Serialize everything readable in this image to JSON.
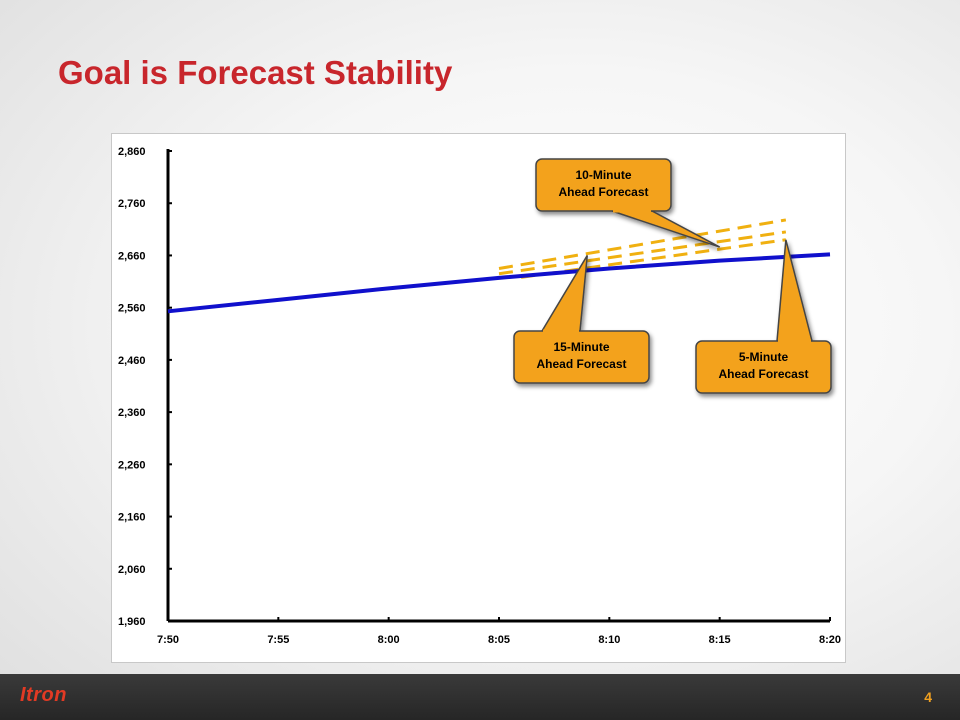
{
  "slide": {
    "title": "Goal is Forecast Stability",
    "page_number": "4",
    "logo_text": "Itron"
  },
  "colors": {
    "title": "#c8262c",
    "actual_line": "#1010cc",
    "forecast_dash": "#f0b010",
    "callout_fill": "#f3a21c",
    "footer": "#2e2e2e"
  },
  "chart_data": {
    "type": "line",
    "title": "",
    "xlabel": "",
    "ylabel": "",
    "x_ticks": [
      "7:50",
      "7:55",
      "8:00",
      "8:05",
      "8:10",
      "8:15",
      "8:20"
    ],
    "y_ticks": [
      "2,860",
      "2,760",
      "2,660",
      "2,560",
      "2,460",
      "2,360",
      "2,260",
      "2,160",
      "2,060",
      "1,960"
    ],
    "ylim": [
      1960,
      2860
    ],
    "xlim_minutes": [
      "7:50",
      "8:20"
    ],
    "grid": false,
    "series": [
      {
        "kind": "actual",
        "points": [
          [
            "7:50",
            2553
          ],
          [
            "7:55",
            2575
          ],
          [
            "8:00",
            2597
          ],
          [
            "8:05",
            2617
          ],
          [
            "8:10",
            2635
          ],
          [
            "8:15",
            2650
          ],
          [
            "8:20",
            2662
          ]
        ]
      },
      {
        "kind": "forecast",
        "points": [
          [
            "8:05",
            2635
          ],
          [
            "8:18",
            2728
          ]
        ]
      },
      {
        "kind": "forecast",
        "points": [
          [
            "8:05",
            2625
          ],
          [
            "8:18",
            2705
          ]
        ]
      },
      {
        "kind": "forecast",
        "points": [
          [
            "8:06",
            2618
          ],
          [
            "8:18",
            2690
          ]
        ]
      }
    ],
    "annotations": [
      {
        "lines": [
          "10-Minute",
          "Ahead Forecast"
        ],
        "points_to": [
          "8:15",
          2676
        ]
      },
      {
        "lines": [
          "15-Minute",
          "Ahead Forecast"
        ],
        "points_to": [
          "8:09",
          2660
        ]
      },
      {
        "lines": [
          "5-Minute",
          "Ahead Forecast"
        ],
        "points_to": [
          "8:18",
          2690
        ]
      }
    ]
  }
}
